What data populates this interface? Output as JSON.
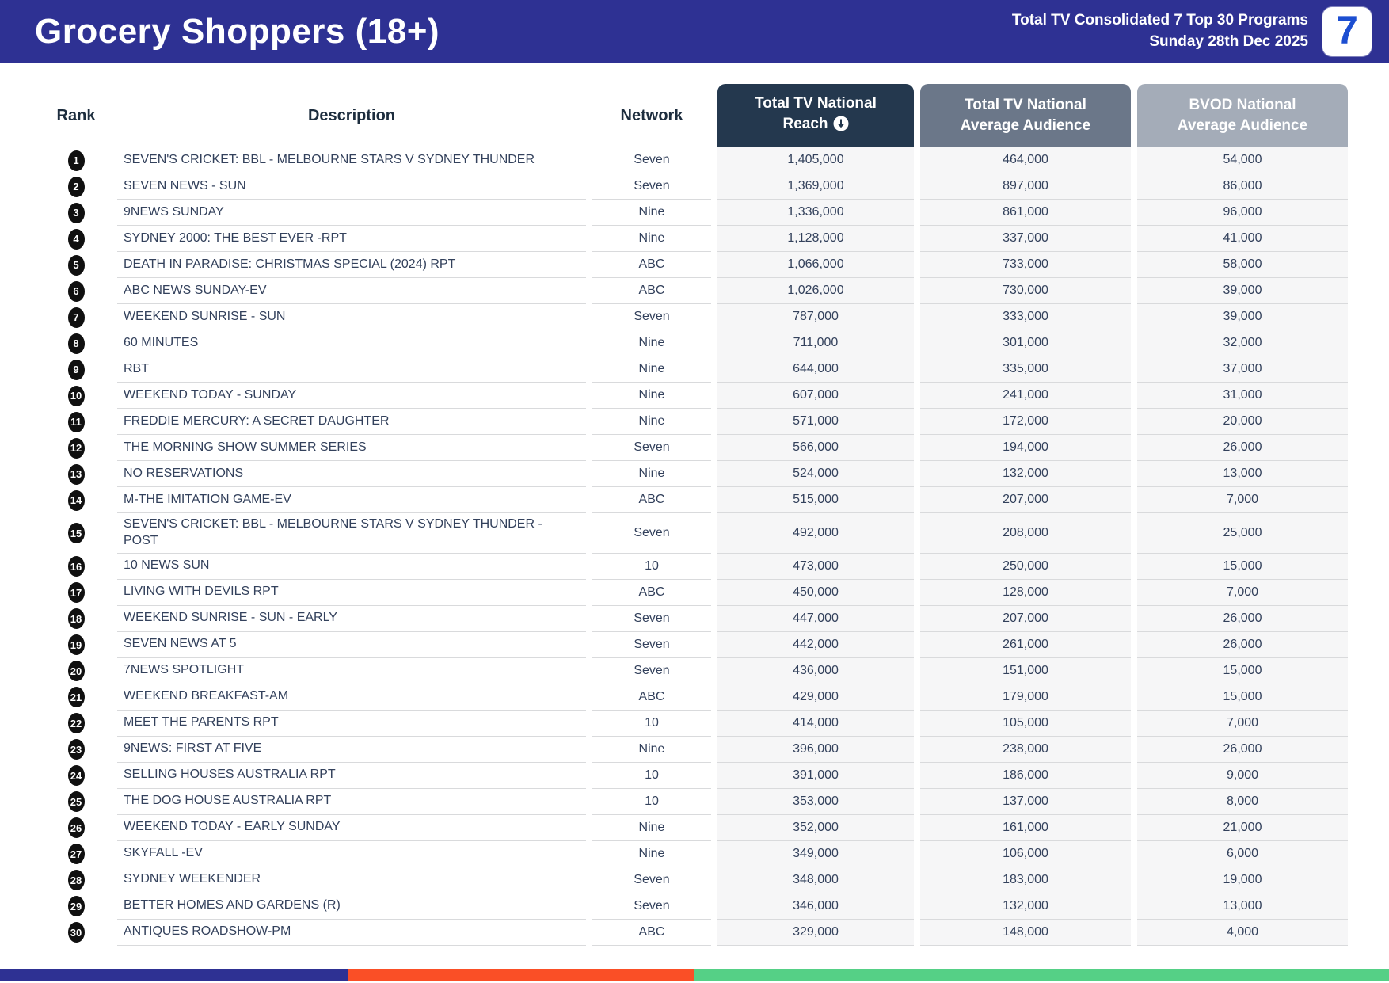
{
  "header": {
    "title": "Grocery Shoppers (18+)",
    "subtitle_line1": "Total TV Consolidated 7 Top 30 Programs",
    "subtitle_line2": "Sunday 28th Dec 2025",
    "logo_text": "7"
  },
  "table": {
    "columns": {
      "rank": "Rank",
      "description": "Description",
      "network": "Network",
      "reach_line1": "Total TV National",
      "reach_line2": "Reach",
      "avg_line1": "Total TV National",
      "avg_line2": "Average Audience",
      "bvod_line1": "BVOD National",
      "bvod_line2": "Average Audience",
      "sort_icon": "circled-down-arrow"
    },
    "rows": [
      {
        "rank": "1",
        "description": "SEVEN'S CRICKET: BBL - MELBOURNE STARS V SYDNEY THUNDER",
        "network": "Seven",
        "reach": "1,405,000",
        "avg_audience": "464,000",
        "bvod_audience": "54,000"
      },
      {
        "rank": "2",
        "description": "SEVEN NEWS - SUN",
        "network": "Seven",
        "reach": "1,369,000",
        "avg_audience": "897,000",
        "bvod_audience": "86,000"
      },
      {
        "rank": "3",
        "description": "9NEWS SUNDAY",
        "network": "Nine",
        "reach": "1,336,000",
        "avg_audience": "861,000",
        "bvod_audience": "96,000"
      },
      {
        "rank": "4",
        "description": "SYDNEY 2000: THE BEST EVER -RPT",
        "network": "Nine",
        "reach": "1,128,000",
        "avg_audience": "337,000",
        "bvod_audience": "41,000"
      },
      {
        "rank": "5",
        "description": "DEATH IN PARADISE: CHRISTMAS SPECIAL (2024) RPT",
        "network": "ABC",
        "reach": "1,066,000",
        "avg_audience": "733,000",
        "bvod_audience": "58,000"
      },
      {
        "rank": "6",
        "description": "ABC NEWS SUNDAY-EV",
        "network": "ABC",
        "reach": "1,026,000",
        "avg_audience": "730,000",
        "bvod_audience": "39,000"
      },
      {
        "rank": "7",
        "description": "WEEKEND SUNRISE - SUN",
        "network": "Seven",
        "reach": "787,000",
        "avg_audience": "333,000",
        "bvod_audience": "39,000"
      },
      {
        "rank": "8",
        "description": "60 MINUTES",
        "network": "Nine",
        "reach": "711,000",
        "avg_audience": "301,000",
        "bvod_audience": "32,000"
      },
      {
        "rank": "9",
        "description": "RBT",
        "network": "Nine",
        "reach": "644,000",
        "avg_audience": "335,000",
        "bvod_audience": "37,000"
      },
      {
        "rank": "10",
        "description": "WEEKEND TODAY - SUNDAY",
        "network": "Nine",
        "reach": "607,000",
        "avg_audience": "241,000",
        "bvod_audience": "31,000"
      },
      {
        "rank": "11",
        "description": "FREDDIE MERCURY: A SECRET DAUGHTER",
        "network": "Nine",
        "reach": "571,000",
        "avg_audience": "172,000",
        "bvod_audience": "20,000"
      },
      {
        "rank": "12",
        "description": "THE MORNING SHOW SUMMER SERIES",
        "network": "Seven",
        "reach": "566,000",
        "avg_audience": "194,000",
        "bvod_audience": "26,000"
      },
      {
        "rank": "13",
        "description": "NO RESERVATIONS",
        "network": "Nine",
        "reach": "524,000",
        "avg_audience": "132,000",
        "bvod_audience": "13,000"
      },
      {
        "rank": "14",
        "description": "M-THE IMITATION GAME-EV",
        "network": "ABC",
        "reach": "515,000",
        "avg_audience": "207,000",
        "bvod_audience": "7,000"
      },
      {
        "rank": "15",
        "description": "SEVEN'S CRICKET: BBL - MELBOURNE STARS V SYDNEY THUNDER - POST",
        "network": "Seven",
        "reach": "492,000",
        "avg_audience": "208,000",
        "bvod_audience": "25,000"
      },
      {
        "rank": "16",
        "description": "10 NEWS SUN",
        "network": "10",
        "reach": "473,000",
        "avg_audience": "250,000",
        "bvod_audience": "15,000"
      },
      {
        "rank": "17",
        "description": "LIVING WITH DEVILS RPT",
        "network": "ABC",
        "reach": "450,000",
        "avg_audience": "128,000",
        "bvod_audience": "7,000"
      },
      {
        "rank": "18",
        "description": "WEEKEND SUNRISE - SUN - EARLY",
        "network": "Seven",
        "reach": "447,000",
        "avg_audience": "207,000",
        "bvod_audience": "26,000"
      },
      {
        "rank": "19",
        "description": "SEVEN NEWS AT 5",
        "network": "Seven",
        "reach": "442,000",
        "avg_audience": "261,000",
        "bvod_audience": "26,000"
      },
      {
        "rank": "20",
        "description": "7NEWS SPOTLIGHT",
        "network": "Seven",
        "reach": "436,000",
        "avg_audience": "151,000",
        "bvod_audience": "15,000"
      },
      {
        "rank": "21",
        "description": "WEEKEND BREAKFAST-AM",
        "network": "ABC",
        "reach": "429,000",
        "avg_audience": "179,000",
        "bvod_audience": "15,000"
      },
      {
        "rank": "22",
        "description": "MEET THE PARENTS RPT",
        "network": "10",
        "reach": "414,000",
        "avg_audience": "105,000",
        "bvod_audience": "7,000"
      },
      {
        "rank": "23",
        "description": "9NEWS: FIRST AT FIVE",
        "network": "Nine",
        "reach": "396,000",
        "avg_audience": "238,000",
        "bvod_audience": "26,000"
      },
      {
        "rank": "24",
        "description": "SELLING HOUSES AUSTRALIA RPT",
        "network": "10",
        "reach": "391,000",
        "avg_audience": "186,000",
        "bvod_audience": "9,000"
      },
      {
        "rank": "25",
        "description": "THE DOG HOUSE AUSTRALIA RPT",
        "network": "10",
        "reach": "353,000",
        "avg_audience": "137,000",
        "bvod_audience": "8,000"
      },
      {
        "rank": "26",
        "description": "WEEKEND TODAY - EARLY SUNDAY",
        "network": "Nine",
        "reach": "352,000",
        "avg_audience": "161,000",
        "bvod_audience": "21,000"
      },
      {
        "rank": "27",
        "description": "SKYFALL -EV",
        "network": "Nine",
        "reach": "349,000",
        "avg_audience": "106,000",
        "bvod_audience": "6,000"
      },
      {
        "rank": "28",
        "description": "SYDNEY WEEKENDER",
        "network": "Seven",
        "reach": "348,000",
        "avg_audience": "183,000",
        "bvod_audience": "19,000"
      },
      {
        "rank": "29",
        "description": "BETTER HOMES AND GARDENS (R)",
        "network": "Seven",
        "reach": "346,000",
        "avg_audience": "132,000",
        "bvod_audience": "13,000"
      },
      {
        "rank": "30",
        "description": "ANTIQUES ROADSHOW-PM",
        "network": "ABC",
        "reach": "329,000",
        "avg_audience": "148,000",
        "bvod_audience": "4,000"
      }
    ]
  },
  "footer": {
    "segments": [
      {
        "name": "footer-segment-blue",
        "color": "#2e3193",
        "width": "25%"
      },
      {
        "name": "footer-segment-orange",
        "color": "#fa4f26",
        "width": "25%"
      },
      {
        "name": "footer-segment-green",
        "color": "#55d086",
        "width": "50%"
      }
    ]
  },
  "colors": {
    "banner_blue": "#2e3193",
    "pill_dark_navy": "#24384e",
    "pill_mid_gray": "#6b7789",
    "pill_light_gray": "#a4acb8",
    "numeric_cell_bg": "#f6f6f7",
    "body_text": "#33415c",
    "logo_seven_blue": "#1c4ed1"
  }
}
